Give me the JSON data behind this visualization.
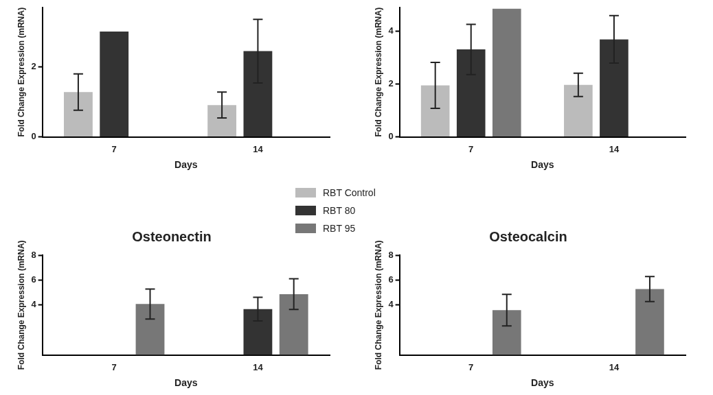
{
  "chart_data": [
    {
      "type": "bar",
      "categories": [
        "7",
        "14"
      ],
      "xlabel": "Days",
      "ylabel": "Fold Change Expression (mRNA)",
      "ylim": [
        0,
        3.7
      ],
      "yticks": [
        0,
        2
      ],
      "grid": false,
      "legend": "bottom right",
      "series": [
        {
          "name": "RBT Control",
          "color": "#bbbbbb",
          "values": [
            1.28,
            0.91
          ],
          "errors": [
            0.52,
            0.37
          ]
        },
        {
          "name": "RBT 80",
          "color": "#333333",
          "values": [
            3.01,
            2.45
          ],
          "errors": [
            null,
            0.91
          ]
        },
        {
          "name": "RBT 95",
          "color": "#777777",
          "values": [
            null,
            null
          ],
          "errors": [
            null,
            null
          ]
        }
      ]
    },
    {
      "type": "bar",
      "categories": [
        "7",
        "14"
      ],
      "xlabel": "Days",
      "ylabel": "Fold Change Expression (mRNA)",
      "ylim": [
        0,
        4.9
      ],
      "yticks": [
        0,
        2,
        4
      ],
      "grid": false,
      "series": [
        {
          "color": "#bbbbbb",
          "values": [
            1.95,
            1.97
          ],
          "errors": [
            0.87,
            0.44
          ]
        },
        {
          "color": "#333333",
          "values": [
            3.31,
            3.69
          ],
          "errors": [
            0.95,
            0.9
          ]
        },
        {
          "color": "#777777",
          "values": [
            4.85,
            null
          ],
          "errors": [
            null,
            null
          ]
        }
      ]
    },
    {
      "type": "bar",
      "title": "Osteonectin",
      "categories": [
        "7",
        "14"
      ],
      "xlabel": "Days",
      "ylabel": "Fold Change Expression (mRNA)",
      "ylim": [
        0,
        8
      ],
      "yticks": [
        4,
        6,
        8
      ],
      "grid": false,
      "series": [
        {
          "color": "#bbbbbb",
          "values": [
            null,
            null
          ],
          "errors": [
            null,
            null
          ]
        },
        {
          "color": "#333333",
          "values": [
            null,
            3.67
          ],
          "errors": [
            null,
            0.95
          ]
        },
        {
          "color": "#777777",
          "values": [
            4.08,
            4.87
          ],
          "errors": [
            1.2,
            1.23
          ]
        }
      ]
    },
    {
      "type": "bar",
      "title": "Osteocalcin",
      "categories": [
        "7",
        "14"
      ],
      "xlabel": "Days",
      "ylabel": "Fold Change Expression (mRNA)",
      "ylim": [
        0,
        8
      ],
      "yticks": [
        4,
        6,
        8
      ],
      "grid": false,
      "series": [
        {
          "color": "#bbbbbb",
          "values": [
            null,
            null
          ],
          "errors": [
            null,
            null
          ]
        },
        {
          "color": "#333333",
          "values": [
            null,
            null
          ],
          "errors": [
            null,
            null
          ]
        },
        {
          "color": "#777777",
          "values": [
            3.59,
            5.28
          ],
          "errors": [
            1.26,
            1.0
          ]
        }
      ]
    }
  ]
}
